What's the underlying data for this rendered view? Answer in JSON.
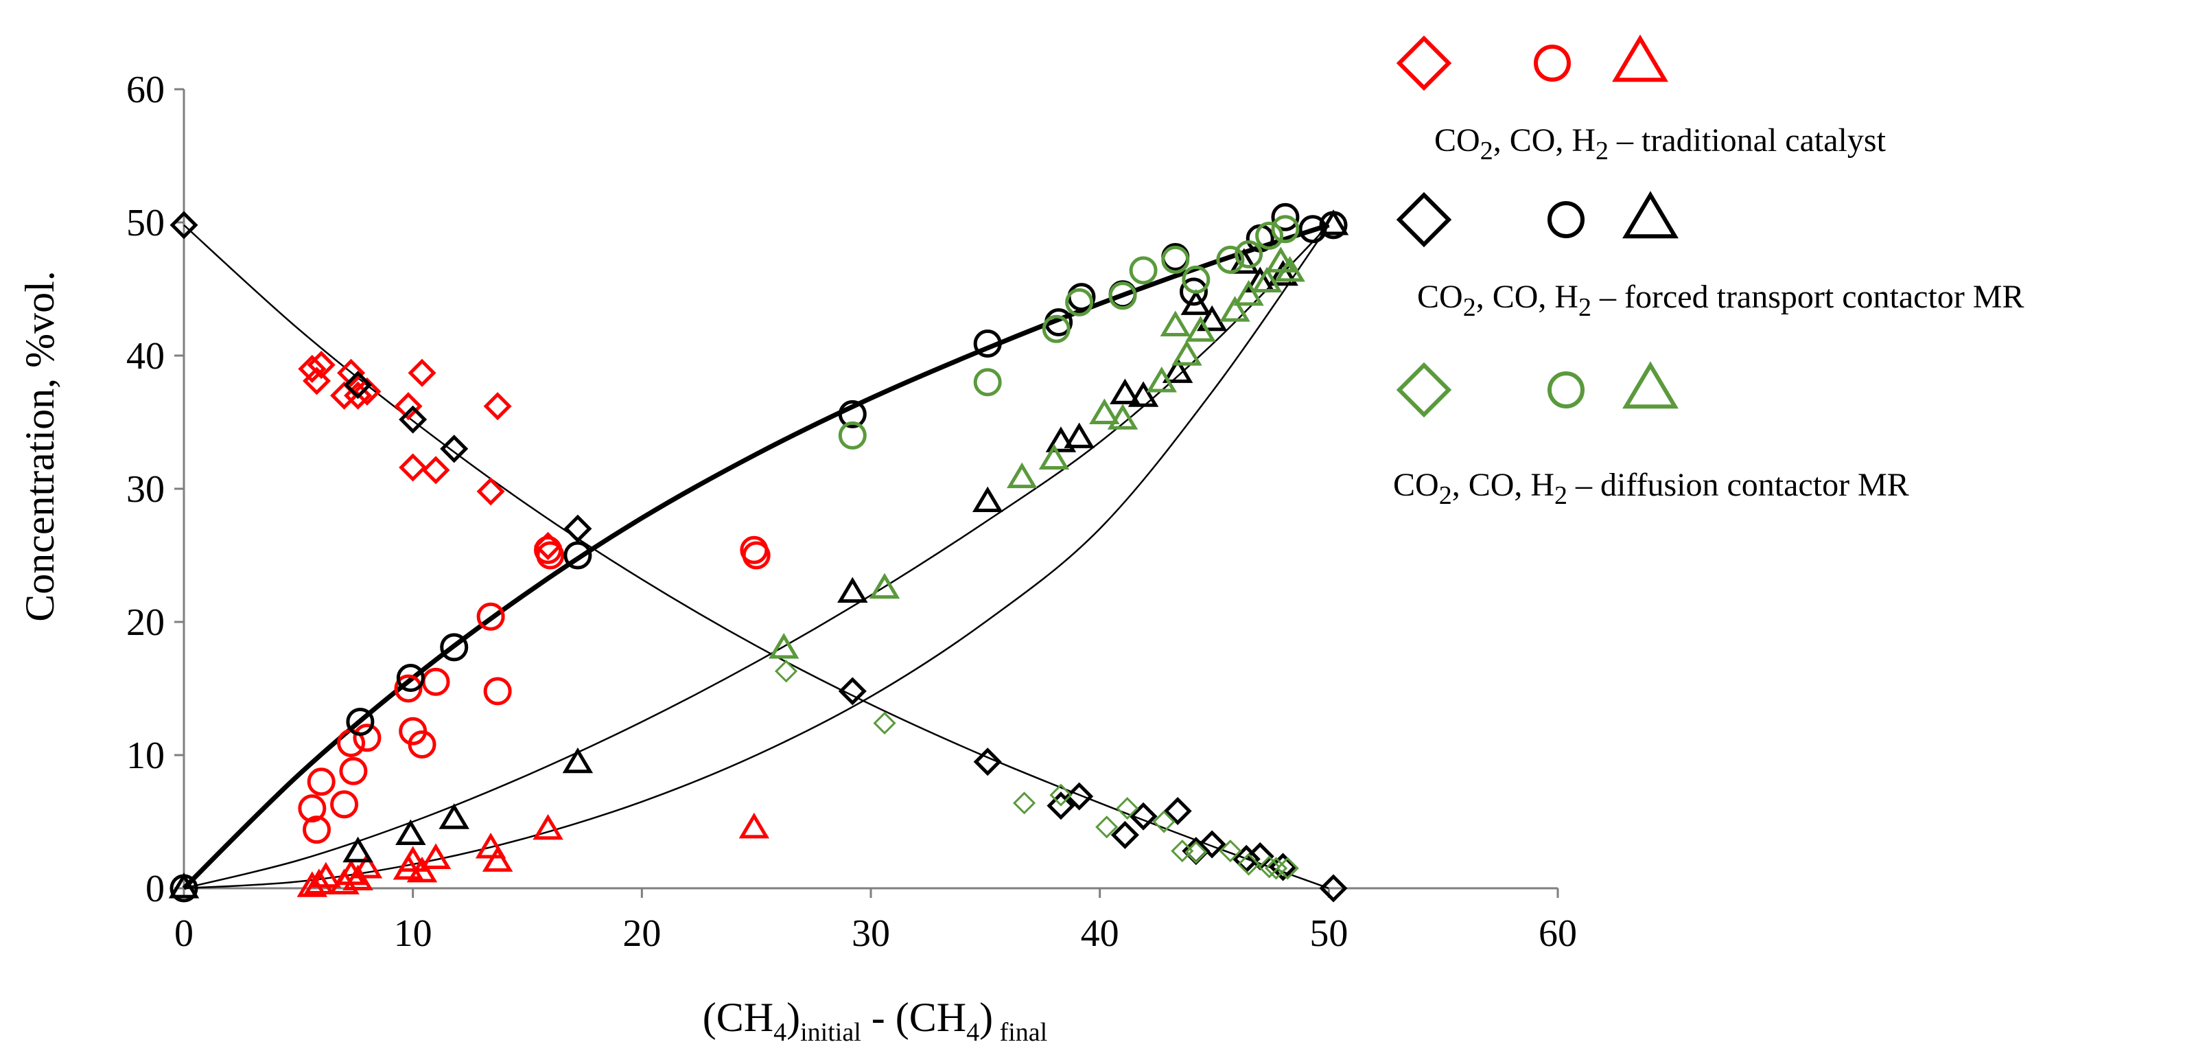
{
  "chart_data": {
    "type": "scatter",
    "xlabel": "(CH4)initial - (CH4) final",
    "xlabel_parts": {
      "base1": "(CH",
      "sub1": "4",
      "sub1b": "initial",
      "mid": " - (CH",
      "sub2": "4",
      "post2": ")",
      "sub3": " final"
    },
    "ylabel": "Concentration, %vol.",
    "xlim": [
      0,
      60
    ],
    "ylim": [
      0,
      60
    ],
    "xticks": [
      "0",
      "10",
      "20",
      "30",
      "40",
      "50",
      "60"
    ],
    "yticks": [
      "0",
      "10",
      "20",
      "30",
      "40",
      "50",
      "60"
    ],
    "grid": false,
    "legend_position": "right",
    "legend": [
      {
        "label": "CO2, CO, H2 – traditional catalyst",
        "parts": [
          "CO",
          "2",
          ", CO, H",
          "2",
          " – traditional catalyst"
        ],
        "color": "#ff0000"
      },
      {
        "label": "CO2, CO, H2 – forced transport contactor MR",
        "parts": [
          "CO",
          "2",
          ", CO, H",
          "2",
          " – forced transport contactor MR"
        ],
        "color": "#000000"
      },
      {
        "label": "CO2, CO, H2 – diffusion contactor MR",
        "parts": [
          "CO",
          "2",
          ", CO, H",
          "2",
          " – diffusion contactor MR"
        ],
        "color": "#5a9a3c"
      }
    ],
    "series": [
      {
        "name": "CO2 traditional catalyst",
        "marker": "diamond",
        "color": "#ff0000",
        "x": [
          5.6,
          5.8,
          6.0,
          7.0,
          7.3,
          7.6,
          8.0,
          9.8,
          10.0,
          10.4,
          11.0,
          13.4,
          13.7,
          15.9
        ],
        "y": [
          39.0,
          38.1,
          39.3,
          37.0,
          38.7,
          37.0,
          37.3,
          36.2,
          31.6,
          38.7,
          31.4,
          29.8,
          36.2,
          25.7
        ]
      },
      {
        "name": "CO traditional catalyst",
        "marker": "circle",
        "color": "#ff0000",
        "x": [
          5.6,
          5.8,
          6.0,
          7.0,
          7.3,
          7.4,
          8.0,
          9.8,
          10.0,
          10.4,
          11.0,
          13.4,
          13.7,
          15.9,
          16.0,
          24.9,
          25.0
        ],
        "y": [
          6.0,
          4.4,
          8.0,
          6.3,
          10.9,
          8.8,
          11.3,
          15.0,
          11.8,
          10.8,
          15.5,
          20.4,
          14.8,
          25.4,
          25.0,
          25.4,
          25.0
        ],
        "fit_to": "co_fit"
      },
      {
        "name": "H2 traditional catalyst",
        "marker": "triangle",
        "color": "#ff0000",
        "x": [
          5.6,
          5.9,
          6.2,
          7.0,
          7.3,
          7.6,
          8.0,
          9.8,
          10.0,
          10.4,
          11.0,
          13.4,
          13.7,
          15.9,
          24.9
        ],
        "y": [
          0.1,
          0.3,
          0.8,
          0.3,
          1.0,
          0.6,
          1.5,
          1.4,
          2.0,
          1.2,
          2.2,
          3.0,
          2.0,
          4.4,
          4.5
        ]
      },
      {
        "name": "CO2 forced transport contactor MR",
        "marker": "diamond",
        "color": "#000000",
        "x": [
          0,
          7.6,
          10.0,
          11.8,
          17.2,
          29.2,
          35.1,
          38.3,
          39.1,
          41.1,
          41.9,
          43.4,
          44.2,
          44.9,
          46.4,
          47.0,
          48.0,
          50.2
        ],
        "y": [
          49.8,
          37.8,
          35.2,
          33.0,
          27.0,
          14.8,
          9.5,
          6.2,
          6.9,
          4.0,
          5.4,
          5.8,
          2.8,
          3.3,
          2.2,
          2.4,
          1.6,
          0
        ]
      },
      {
        "name": "CO forced transport contactor MR",
        "marker": "circle",
        "color": "#000000",
        "x": [
          0,
          7.7,
          9.9,
          11.8,
          17.2,
          29.2,
          35.1,
          38.2,
          39.2,
          41.0,
          43.3,
          44.1,
          47.0,
          48.1,
          49.3,
          50.2
        ],
        "y": [
          0,
          12.5,
          15.8,
          18.1,
          25.0,
          35.6,
          40.9,
          42.5,
          44.4,
          44.6,
          47.4,
          44.8,
          48.8,
          50.4,
          49.5,
          49.8
        ]
      },
      {
        "name": "H2 forced transport contactor MR",
        "marker": "triangle",
        "color": "#000000",
        "x": [
          0,
          7.6,
          9.9,
          11.8,
          17.2,
          29.2,
          35.1,
          38.3,
          39.1,
          41.1,
          41.9,
          43.4,
          44.2,
          44.9,
          46.3,
          47.0,
          48.0,
          50.2
        ],
        "y": [
          0,
          2.7,
          4.0,
          5.2,
          9.4,
          22.2,
          29.0,
          33.5,
          33.8,
          37.1,
          36.9,
          38.7,
          43.8,
          42.6,
          46.9,
          45.5,
          46.0,
          49.8
        ]
      },
      {
        "name": "CO2 diffusion contactor MR",
        "marker": "diamond-small",
        "color": "#5a9a3c",
        "x": [
          26.3,
          30.6,
          36.7,
          38.3,
          40.3,
          41.2,
          42.8,
          43.6,
          44.2,
          45.7,
          46.5,
          47.4,
          47.7,
          48.2
        ],
        "y": [
          16.3,
          12.4,
          6.4,
          7.0,
          4.6,
          6.0,
          5.0,
          2.8,
          2.7,
          2.8,
          1.8,
          1.6,
          1.5,
          1.5
        ]
      },
      {
        "name": "CO diffusion contactor MR",
        "marker": "circle",
        "color": "#5a9a3c",
        "x": [
          29.2,
          35.1,
          38.1,
          39.1,
          41.0,
          41.9,
          43.3,
          44.2,
          45.7,
          46.5,
          47.4,
          48.1
        ],
        "y": [
          34.0,
          38.0,
          42.0,
          44.0,
          44.5,
          46.4,
          47.2,
          45.7,
          47.2,
          47.6,
          49.0,
          49.5
        ]
      },
      {
        "name": "H2 diffusion contactor MR",
        "marker": "triangle",
        "color": "#5a9a3c",
        "x": [
          26.2,
          30.6,
          36.6,
          38.0,
          40.2,
          41.0,
          42.7,
          43.3,
          43.8,
          44.4,
          45.9,
          46.5,
          47.3,
          47.9,
          48.3
        ],
        "y": [
          18.0,
          22.5,
          30.8,
          32.2,
          35.6,
          35.2,
          38.0,
          42.2,
          40.0,
          41.8,
          43.3,
          44.5,
          45.5,
          47.0,
          46.3
        ]
      }
    ],
    "fit_curves": [
      {
        "name": "CO fit (thick)",
        "color": "#000000",
        "width": "thick",
        "x": [
          0,
          5,
          10,
          15,
          20,
          25,
          30,
          35,
          40,
          45,
          50
        ],
        "y": [
          0,
          8.5,
          15.8,
          22.2,
          27.8,
          32.6,
          36.8,
          40.5,
          43.9,
          47.0,
          49.8
        ]
      },
      {
        "name": "CO2 fit",
        "color": "#000000",
        "width": "thin",
        "x": [
          0,
          5,
          10,
          15,
          20,
          25,
          30,
          35,
          40,
          45,
          50
        ],
        "y": [
          49.8,
          42.0,
          35.1,
          28.8,
          23.2,
          18.2,
          13.8,
          9.9,
          6.4,
          3.1,
          0
        ]
      },
      {
        "name": "H2 fit forced transport",
        "color": "#000000",
        "width": "thin",
        "x": [
          0,
          5,
          10,
          15,
          20,
          25,
          30,
          35,
          40,
          45,
          50
        ],
        "y": [
          0,
          2.1,
          5.0,
          8.5,
          12.5,
          17.0,
          22.0,
          27.5,
          33.5,
          41.0,
          49.8
        ]
      },
      {
        "name": "H2 fit traditional",
        "color": "#000000",
        "width": "thin",
        "x": [
          0,
          5,
          10,
          15,
          20,
          25,
          30,
          35,
          40,
          45,
          50
        ],
        "y": [
          0,
          0.5,
          1.8,
          3.8,
          6.5,
          10.0,
          14.4,
          20.0,
          27.0,
          37.5,
          49.8
        ]
      }
    ]
  }
}
